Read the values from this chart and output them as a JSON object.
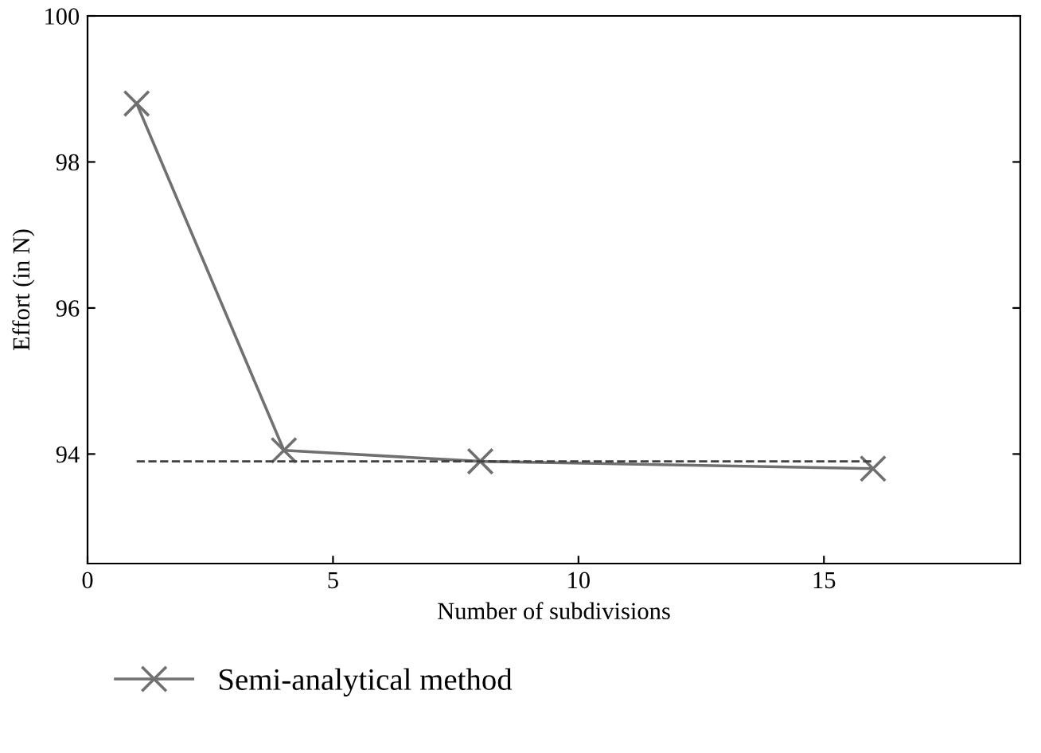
{
  "chart_data": {
    "type": "line",
    "xlabel": "Number of subdivisions",
    "ylabel": "Effort (in N)",
    "xlim": [
      0,
      19
    ],
    "ylim": [
      92.5,
      100
    ],
    "xticks": [
      0,
      5,
      10,
      15
    ],
    "yticks": [
      94,
      96,
      98,
      100
    ],
    "grid": false,
    "legend": "bottom left",
    "series": [
      {
        "name": "Semi-analytical method",
        "color": "#707070",
        "x": [
          1,
          4,
          8,
          16
        ],
        "values": [
          98.8,
          94.05,
          93.9,
          93.8
        ],
        "marker": "cross",
        "line_style": "solid"
      },
      {
        "color": "#404040",
        "x": [
          1,
          16
        ],
        "values": [
          93.9,
          93.9
        ],
        "marker": "none",
        "line_style": "dashed"
      }
    ]
  }
}
